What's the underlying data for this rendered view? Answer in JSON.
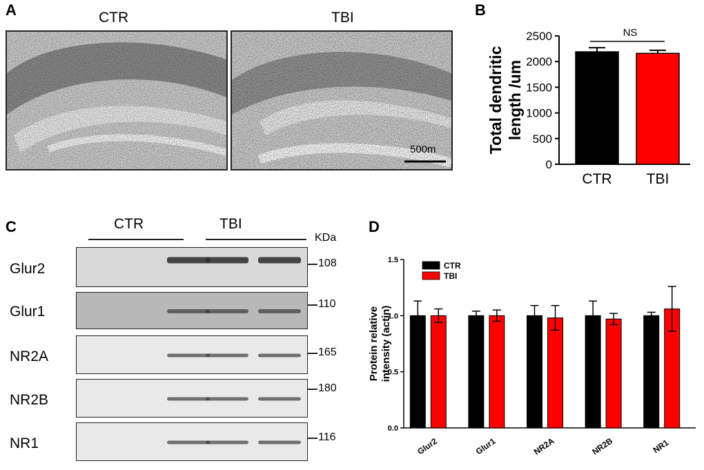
{
  "panels": {
    "A": {
      "letter": "A",
      "images": [
        {
          "label": "CTR"
        },
        {
          "label": "TBI",
          "scale_bar": "500m"
        }
      ]
    },
    "B": {
      "letter": "B"
    },
    "C": {
      "letter": "C",
      "groups": [
        "CTR",
        "TBI"
      ],
      "unit_label": "KDa",
      "rows": [
        {
          "label": "Glur2",
          "kda": "108"
        },
        {
          "label": "Glur1",
          "kda": "110"
        },
        {
          "label": "NR2A",
          "kda": "165"
        },
        {
          "label": "NR2B",
          "kda": "180"
        },
        {
          "label": "NR1",
          "kda": "116"
        }
      ]
    },
    "D": {
      "letter": "D"
    }
  },
  "chart_data": [
    {
      "id": "B",
      "type": "bar",
      "categories": [
        "CTR",
        "TBI"
      ],
      "values": [
        2190,
        2160
      ],
      "errors": [
        80,
        60
      ],
      "colors": [
        "#000000",
        "#ff0000"
      ],
      "ylabel": "Total dendritic length /um",
      "xlabel": "",
      "ylim": [
        0,
        2500
      ],
      "yticks": [
        0,
        500,
        1000,
        1500,
        2000,
        2500
      ],
      "annotation": "NS"
    },
    {
      "id": "D",
      "type": "bar",
      "categories": [
        "Glur2",
        "Glur1",
        "NR2A",
        "NR2B",
        "NR1"
      ],
      "series": [
        {
          "name": "CTR",
          "color": "#000000",
          "values": [
            1.0,
            1.0,
            1.0,
            1.0,
            1.0
          ],
          "errors": [
            0.13,
            0.04,
            0.09,
            0.13,
            0.03
          ]
        },
        {
          "name": "TBI",
          "color": "#ff0000",
          "values": [
            1.0,
            1.0,
            0.98,
            0.97,
            1.06
          ],
          "errors": [
            0.06,
            0.05,
            0.11,
            0.05,
            0.2
          ]
        }
      ],
      "ylabel": "Protein relative intensity (actin)",
      "xlabel": "",
      "ylim": [
        0,
        1.5
      ],
      "yticks": [
        "0.0",
        "0.5",
        "1.0",
        "1.5"
      ],
      "legend_position": "top-left"
    }
  ]
}
